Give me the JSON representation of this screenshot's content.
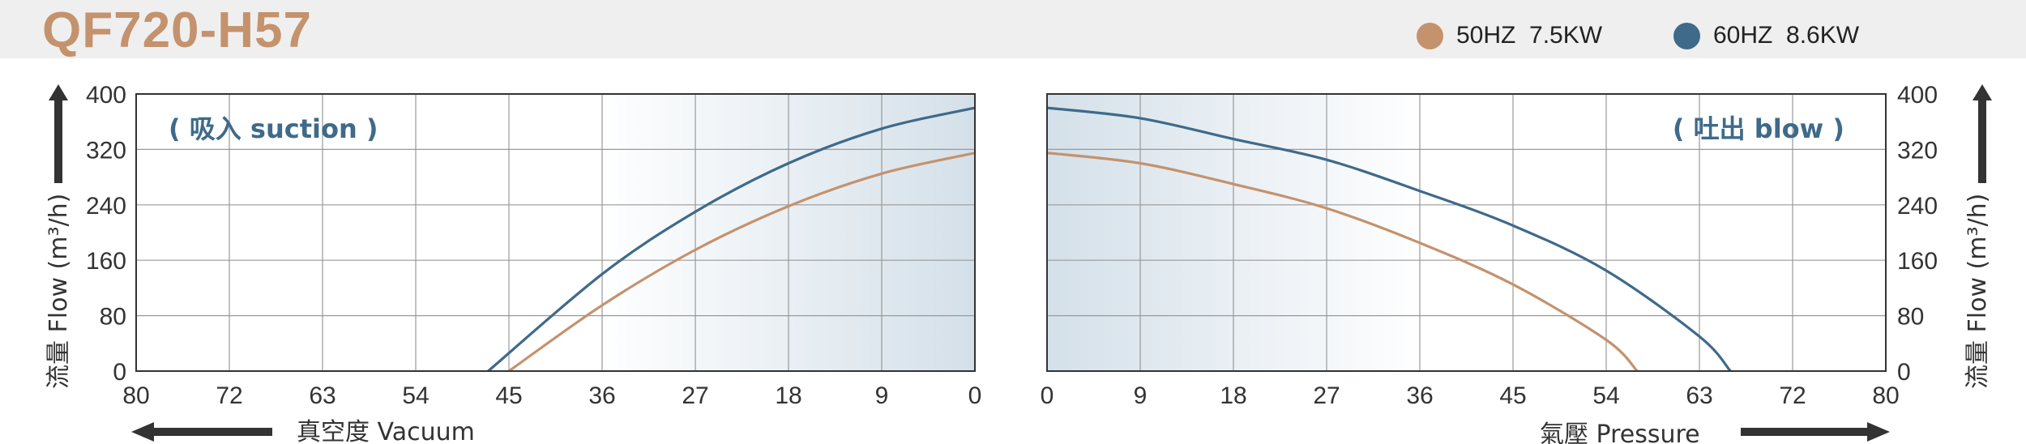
{
  "title": "QF720-H57",
  "legend": [
    {
      "label": "50HZ  7.5KW",
      "color": "#c4926d"
    },
    {
      "label": "60HZ  8.6KW",
      "color": "#3f6a8a"
    }
  ],
  "chart_data": [
    {
      "type": "line",
      "panel": "suction",
      "annotation": "( 吸入 suction )",
      "ylabel": "流量 Flow (m³/h)",
      "xlabel": "真空度  Vacuum",
      "xlim": [
        80,
        0
      ],
      "ylim": [
        0,
        400
      ],
      "x_ticks": [
        "80",
        "72",
        "63",
        "54",
        "45",
        "36",
        "27",
        "18",
        "9",
        "0"
      ],
      "y_ticks": [
        "0",
        "80",
        "160",
        "240",
        "320",
        "400"
      ],
      "grid": true,
      "series": [
        {
          "name": "50HZ  7.5KW",
          "color": "#c4926d",
          "points": [
            [
              45,
              0
            ],
            [
              36,
              95
            ],
            [
              27,
              175
            ],
            [
              18,
              238
            ],
            [
              9,
              285
            ],
            [
              0,
              315
            ]
          ]
        },
        {
          "name": "60HZ  8.6KW",
          "color": "#3f6a8a",
          "points": [
            [
              47,
              0
            ],
            [
              36,
              140
            ],
            [
              27,
              230
            ],
            [
              18,
              300
            ],
            [
              9,
              350
            ],
            [
              0,
              380
            ]
          ]
        }
      ]
    },
    {
      "type": "line",
      "panel": "blow",
      "annotation": "( 吐出 blow )",
      "ylabel": "流量 Flow (m³/h)",
      "xlabel": "氣壓  Pressure",
      "xlim": [
        0,
        80
      ],
      "ylim": [
        0,
        400
      ],
      "x_ticks": [
        "0",
        "9",
        "18",
        "27",
        "36",
        "45",
        "54",
        "63",
        "72",
        "80"
      ],
      "y_ticks": [
        "0",
        "80",
        "160",
        "240",
        "320",
        "400"
      ],
      "grid": true,
      "series": [
        {
          "name": "50HZ  7.5KW",
          "color": "#c4926d",
          "points": [
            [
              0,
              315
            ],
            [
              9,
              300
            ],
            [
              18,
              270
            ],
            [
              27,
              235
            ],
            [
              36,
              185
            ],
            [
              45,
              125
            ],
            [
              54,
              45
            ],
            [
              57,
              0
            ]
          ]
        },
        {
          "name": "60HZ  8.6KW",
          "color": "#3f6a8a",
          "points": [
            [
              0,
              380
            ],
            [
              9,
              365
            ],
            [
              18,
              335
            ],
            [
              27,
              305
            ],
            [
              36,
              260
            ],
            [
              45,
              210
            ],
            [
              54,
              145
            ],
            [
              63,
              50
            ],
            [
              66,
              0
            ]
          ]
        }
      ]
    }
  ]
}
